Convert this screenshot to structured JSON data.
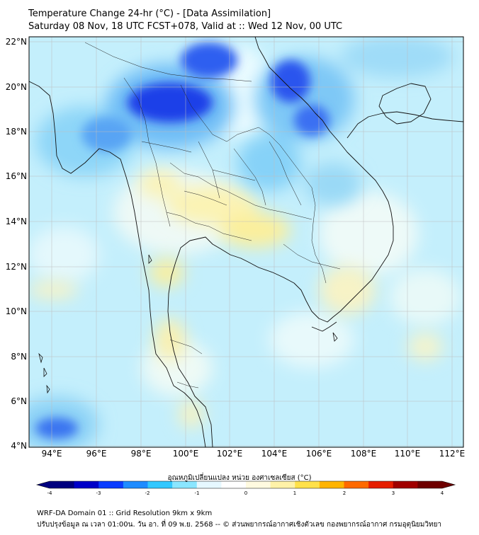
{
  "header": {
    "title": "Temperature Change 24-hr (°C) - [Data Assimilation]",
    "subtitle": "Saturday 08 Nov, 18 UTC FCST+078, Valid at :: Wed 12 Nov, 00 UTC"
  },
  "map": {
    "lat_labels": [
      "22°N",
      "20°N",
      "18°N",
      "16°N",
      "14°N",
      "12°N",
      "10°N",
      "8°N",
      "6°N",
      "4°N"
    ],
    "lon_labels": [
      "94°E",
      "96°E",
      "98°E",
      "100°E",
      "102°E",
      "104°E",
      "106°E",
      "108°E",
      "110°E",
      "112°E"
    ]
  },
  "colorbar": {
    "label": "อุณหภูมิเปลี่ยนแปลง หน่วย องศาเซลเซียส (°C)",
    "ticks": [
      "-4",
      "-3",
      "-2",
      "-1",
      "0",
      "1",
      "2",
      "3",
      "4"
    ],
    "colors": [
      "#00007f",
      "#0000c8",
      "#0a3cff",
      "#1e8cff",
      "#32c8ff",
      "#8ae6ff",
      "#e6f8ff",
      "#ffffff",
      "#fffae0",
      "#fff2a8",
      "#ffe14a",
      "#ffb400",
      "#ff6a00",
      "#e61e00",
      "#a00000",
      "#6e0000"
    ]
  },
  "footer": {
    "line1": "WRF-DA Domain 01 :: Grid Resolution 9km x 9km",
    "line2": "ปรับปรุงข้อมูล ณ เวลา 01:00น. วัน อา. ที่ 09 พ.ย. 2568 -- © ส่วนพยากรณ์อากาศเชิงตัวเลข กองพยากรณ์อากาศ กรมอุตุนิยมวิทยา"
  }
}
